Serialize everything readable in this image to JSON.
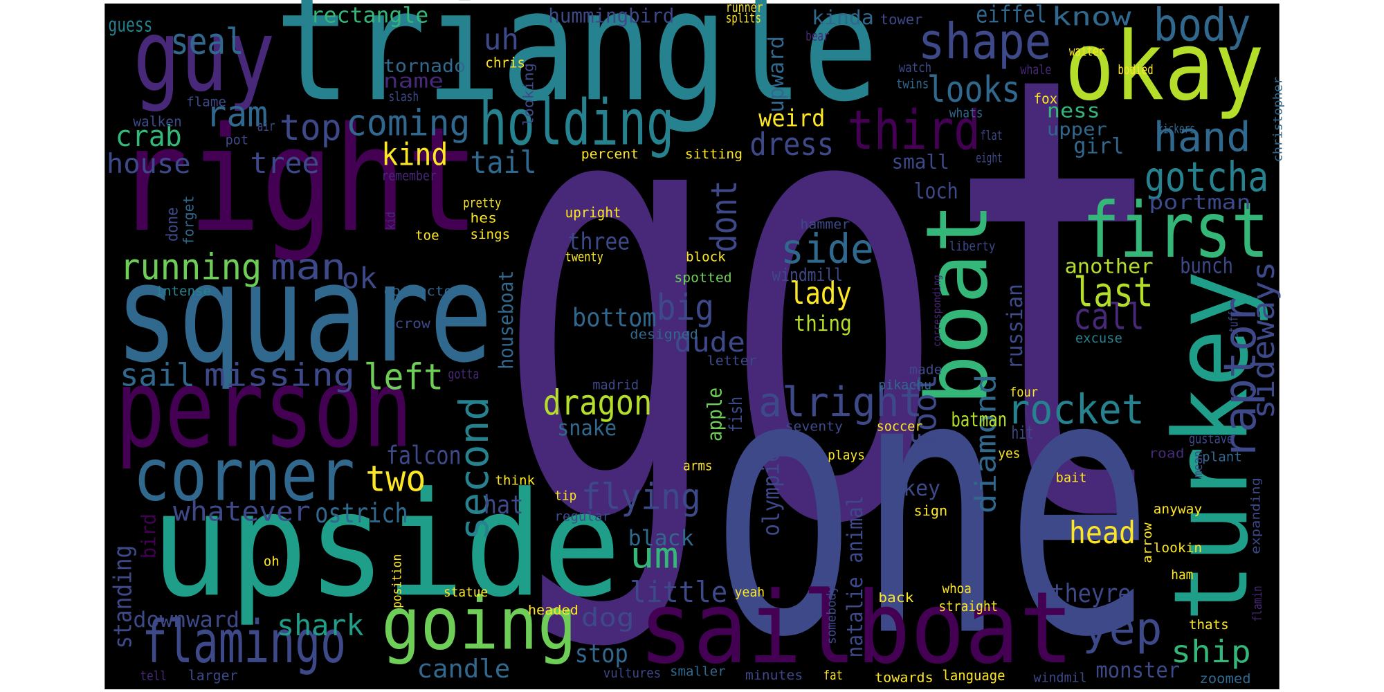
{
  "words": [
    "got",
    "one",
    "triangle",
    "right",
    "square",
    "person",
    "corner",
    "upside",
    "guy",
    "okay",
    "sailboat",
    "boat",
    "turkey",
    "first",
    "going",
    "holding",
    "flamingo",
    "shape",
    "third",
    "body",
    "alright",
    "side",
    "rocket",
    "raptor",
    "sideways",
    "yep",
    "hand",
    "gotcha",
    "looks",
    "last",
    "call",
    "coming",
    "top",
    "ram",
    "crab",
    "seal",
    "house",
    "tree",
    "running",
    "man",
    "ok",
    "sail",
    "missing",
    "left",
    "second",
    "two",
    "falcon",
    "whatever",
    "ostrich",
    "hat",
    "bird",
    "standing",
    "downward",
    "shark",
    "candle",
    "flying",
    "dragon",
    "snake",
    "big",
    "dude",
    "bottom",
    "three",
    "dont",
    "dress",
    "weird",
    "upward",
    "um",
    "little",
    "dog",
    "stop",
    "black",
    "kind",
    "tail",
    "uh",
    "rectangle",
    "guess",
    "hummingbird",
    "kinda",
    "eiffel",
    "know",
    "tower",
    "runner",
    "splits",
    "bear",
    "waiter",
    "whale",
    "bodied",
    "twins",
    "watch",
    "fox",
    "whats",
    "ness",
    "upper",
    "kickers",
    "flat",
    "girl",
    "small",
    "eight",
    "christopher",
    "loch",
    "portman",
    "another",
    "bunch",
    "russian",
    "lady",
    "thing",
    "windmill",
    "foot",
    "diamond",
    "batman",
    "hit",
    "key",
    "sign",
    "head",
    "ship",
    "theyre",
    "monster",
    "natalie",
    "animal",
    "olympic",
    "houseboat",
    "apple",
    "fish",
    "done",
    "forget",
    "air",
    "pot",
    "flame",
    "walken",
    "tornado",
    "chris",
    "looking",
    "name",
    "slash",
    "remember",
    "percent",
    "sitting",
    "pretty",
    "hes",
    "sings",
    "kid",
    "toe",
    "intense",
    "correcto",
    "crow",
    "gotta",
    "upright",
    "hammer",
    "twenty",
    "block",
    "spotted",
    "liberty",
    "corresponding",
    "excuse",
    "stuff",
    "designed",
    "letter",
    "made",
    "pikachu",
    "four",
    "madrid",
    "seventy",
    "soccer",
    "yes",
    "gustave",
    "plays",
    "road",
    "plant",
    "mean",
    "bait",
    "expanding",
    "think",
    "arms",
    "tip",
    "regular",
    "anyway",
    "arrow",
    "lookin",
    "whoa",
    "ham",
    "flamin",
    "oh",
    "position",
    "yeah",
    "statue",
    "headed",
    "back",
    "somebody",
    "straight",
    "thats",
    "tell",
    "larger",
    "vultures",
    "smaller",
    "minutes",
    "fat",
    "towards",
    "language",
    "windmil",
    "zoomed"
  ]
}
